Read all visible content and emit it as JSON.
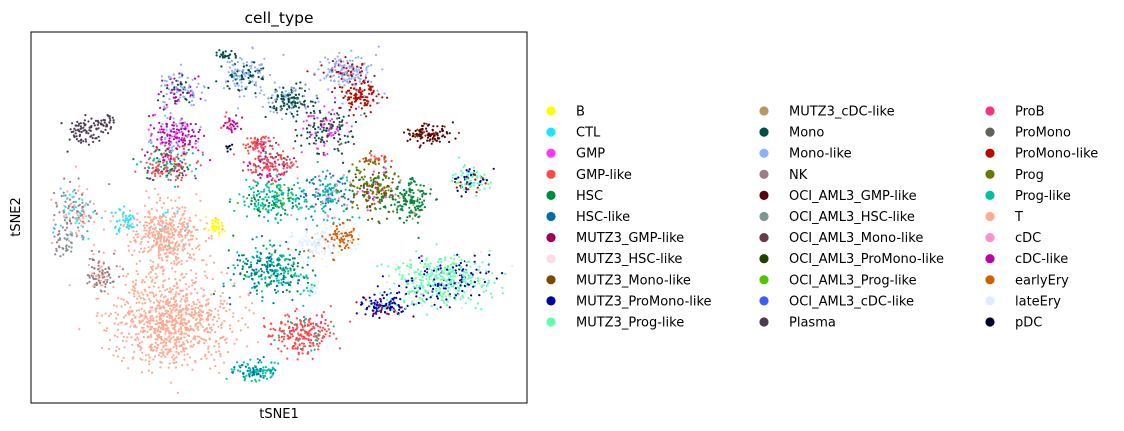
{
  "chart_data": {
    "type": "scatter",
    "title": "cell_type",
    "xlabel": "tSNE1",
    "ylabel": "tSNE2",
    "grid": false,
    "legend_placement": "right",
    "xticks": [],
    "yticks": [],
    "series": [
      {
        "name": "B",
        "color": "#ffff00"
      },
      {
        "name": "CTL",
        "color": "#1ce6ff"
      },
      {
        "name": "GMP",
        "color": "#ff34ff"
      },
      {
        "name": "GMP-like",
        "color": "#ff4a46"
      },
      {
        "name": "HSC",
        "color": "#008941"
      },
      {
        "name": "HSC-like",
        "color": "#006fa6"
      },
      {
        "name": "MUTZ3_GMP-like",
        "color": "#a30059"
      },
      {
        "name": "MUTZ3_HSC-like",
        "color": "#ffdbe5"
      },
      {
        "name": "MUTZ3_Mono-like",
        "color": "#7a4900"
      },
      {
        "name": "MUTZ3_ProMono-like",
        "color": "#0000a6"
      },
      {
        "name": "MUTZ3_Prog-like",
        "color": "#63ffac"
      },
      {
        "name": "MUTZ3_cDC-like",
        "color": "#b79762"
      },
      {
        "name": "Mono",
        "color": "#004d43"
      },
      {
        "name": "Mono-like",
        "color": "#8fb0ff"
      },
      {
        "name": "NK",
        "color": "#997d87"
      },
      {
        "name": "OCI_AML3_GMP-like",
        "color": "#5a0007"
      },
      {
        "name": "OCI_AML3_HSC-like",
        "color": "#809693"
      },
      {
        "name": "OCI_AML3_Mono-like",
        "color": "#6a3a4c"
      },
      {
        "name": "OCI_AML3_ProMono-like",
        "color": "#1b4400"
      },
      {
        "name": "OCI_AML3_Prog-like",
        "color": "#4fc601"
      },
      {
        "name": "OCI_AML3_cDC-like",
        "color": "#3b5dff"
      },
      {
        "name": "Plasma",
        "color": "#4a3b53"
      },
      {
        "name": "ProB",
        "color": "#ff2f80"
      },
      {
        "name": "ProMono",
        "color": "#61615a"
      },
      {
        "name": "ProMono-like",
        "color": "#ba0900"
      },
      {
        "name": "Prog",
        "color": "#6b7900"
      },
      {
        "name": "Prog-like",
        "color": "#00c2a0"
      },
      {
        "name": "T",
        "color": "#ffaa92"
      },
      {
        "name": "cDC",
        "color": "#ff90c9"
      },
      {
        "name": "cDC-like",
        "color": "#b903aa"
      },
      {
        "name": "earlyEry",
        "color": "#d16100"
      },
      {
        "name": "lateEry",
        "color": "#ddefff"
      },
      {
        "name": "pDC",
        "color": "#000035"
      }
    ]
  }
}
